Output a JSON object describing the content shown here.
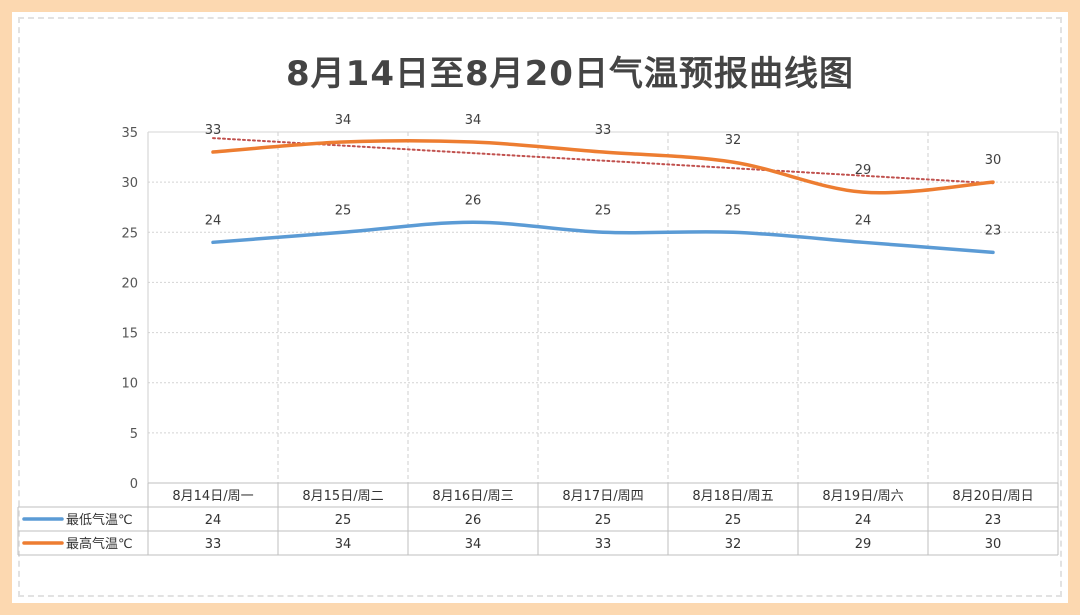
{
  "chart_data": {
    "type": "line",
    "title": "8月14日至8月20日气温预报曲线图",
    "categories": [
      "8月14日/周一",
      "8月15日/周二",
      "8月16日/周三",
      "8月17日/周四",
      "8月18日/周五",
      "8月19日/周六",
      "8月20日/周日"
    ],
    "series": [
      {
        "name": "最低气温℃",
        "values": [
          24,
          25,
          26,
          25,
          25,
          24,
          23
        ],
        "color": "#5b9bd5"
      },
      {
        "name": "最高气温℃",
        "values": [
          33,
          34,
          34,
          33,
          32,
          29,
          30
        ],
        "color": "#ed7d31"
      }
    ],
    "trendline": {
      "series": "最高气温℃",
      "type": "linear",
      "style": "dotted",
      "color": "#c0504d"
    },
    "y_ticks": [
      "0",
      "5",
      "10",
      "15",
      "20",
      "25",
      "30",
      "35"
    ],
    "ylim": [
      0,
      35
    ],
    "grid": true,
    "legend": "data-table",
    "smooth": true
  }
}
